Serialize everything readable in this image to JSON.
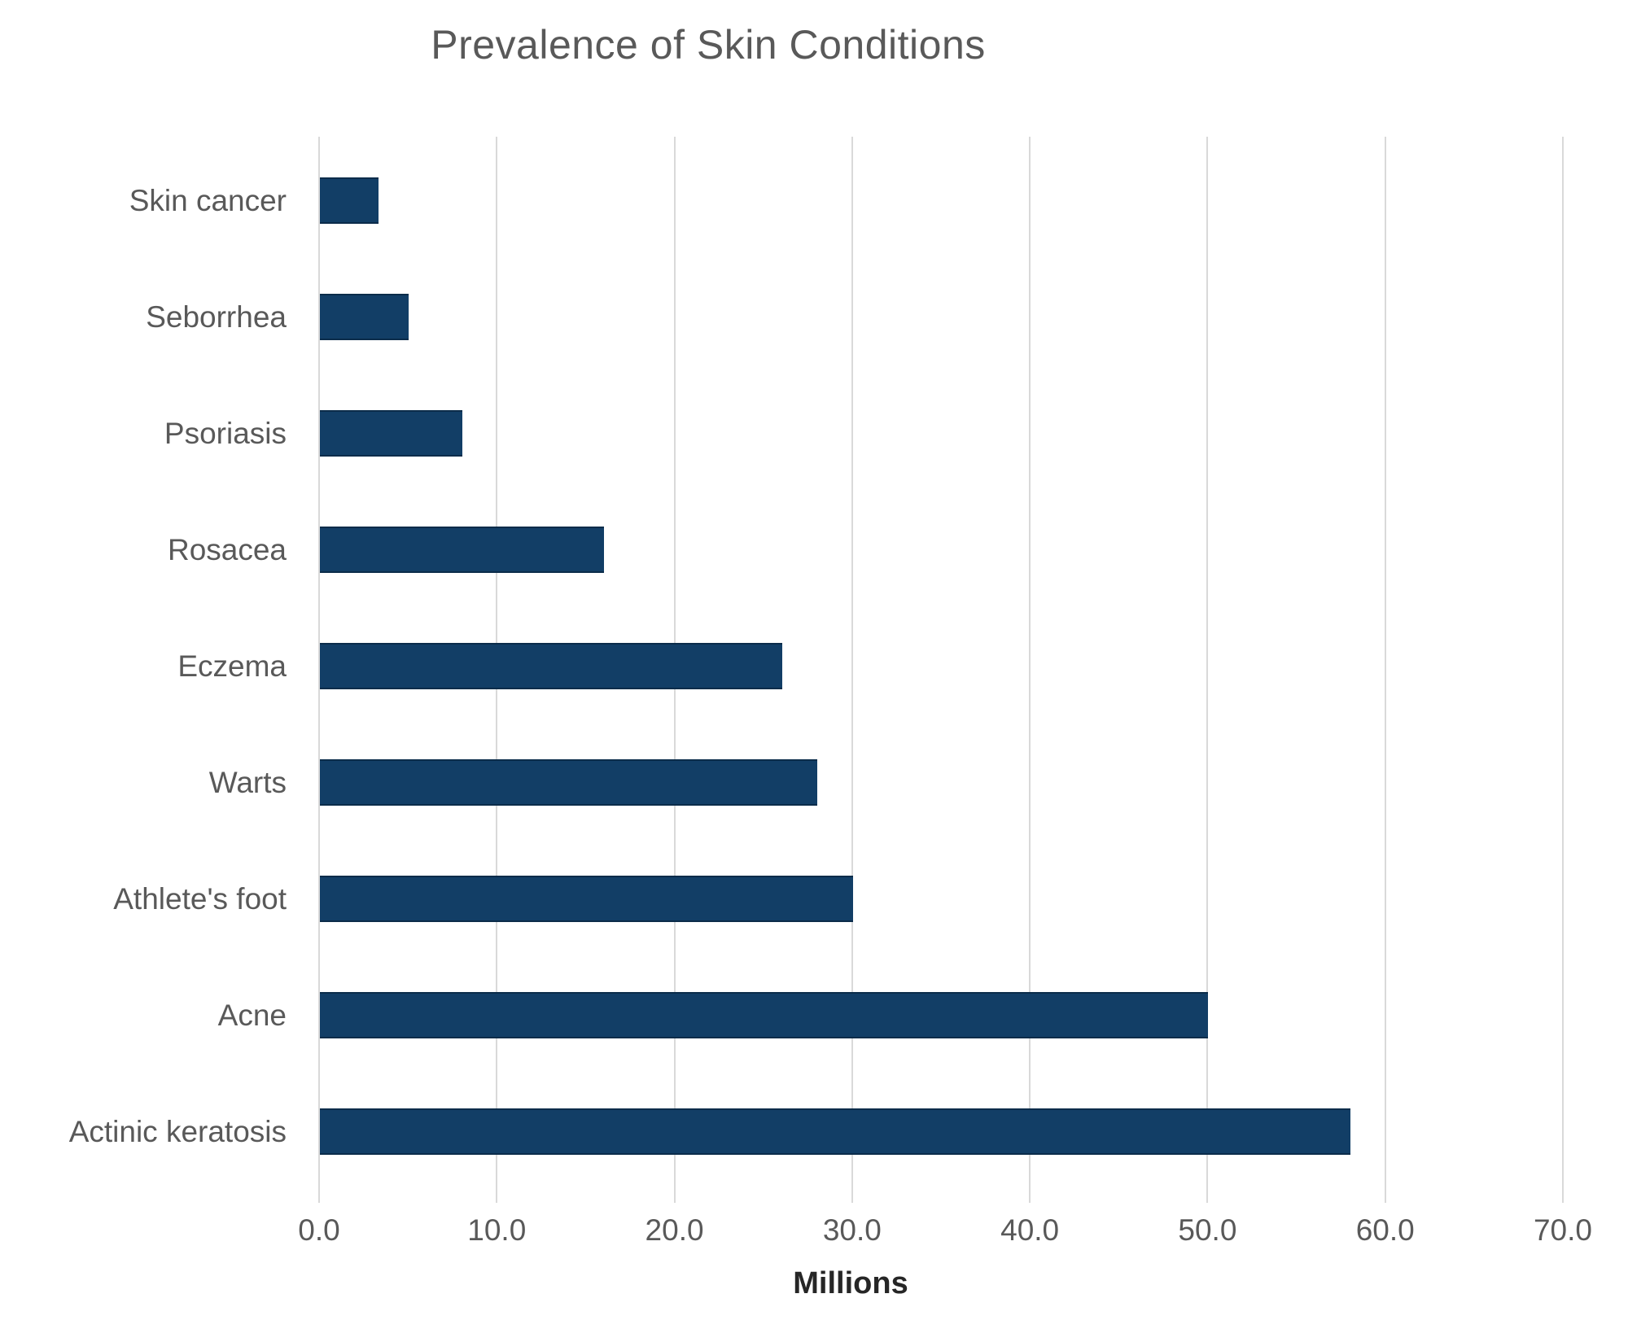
{
  "title": "Prevalence of Skin Conditions",
  "background_color": "#ffffff",
  "chart_data": {
    "type": "bar",
    "orientation": "horizontal",
    "title": "Prevalence of Skin Conditions",
    "categories": [
      "Skin cancer",
      "Seborrhea",
      "Psoriasis",
      "Rosacea",
      "Eczema",
      "Warts",
      "Athlete's foot",
      "Acne",
      "Actinic keratosis"
    ],
    "values": [
      3.3,
      5,
      8,
      16,
      26,
      28,
      30,
      50,
      58
    ],
    "xlabel": "Millions",
    "ylabel": "",
    "xlim": [
      0,
      70
    ],
    "xtick_step": 10,
    "xtick_labels": [
      "0.0",
      "10.0",
      "20.0",
      "30.0",
      "40.0",
      "50.0",
      "60.0",
      "70.0"
    ],
    "grid": true,
    "legend": false,
    "bar_color": "#123e66",
    "gridline_color": "#d9d9d9",
    "title_color": "#595959",
    "tick_label_color": "#595959",
    "xlabel_color": "#262626"
  }
}
